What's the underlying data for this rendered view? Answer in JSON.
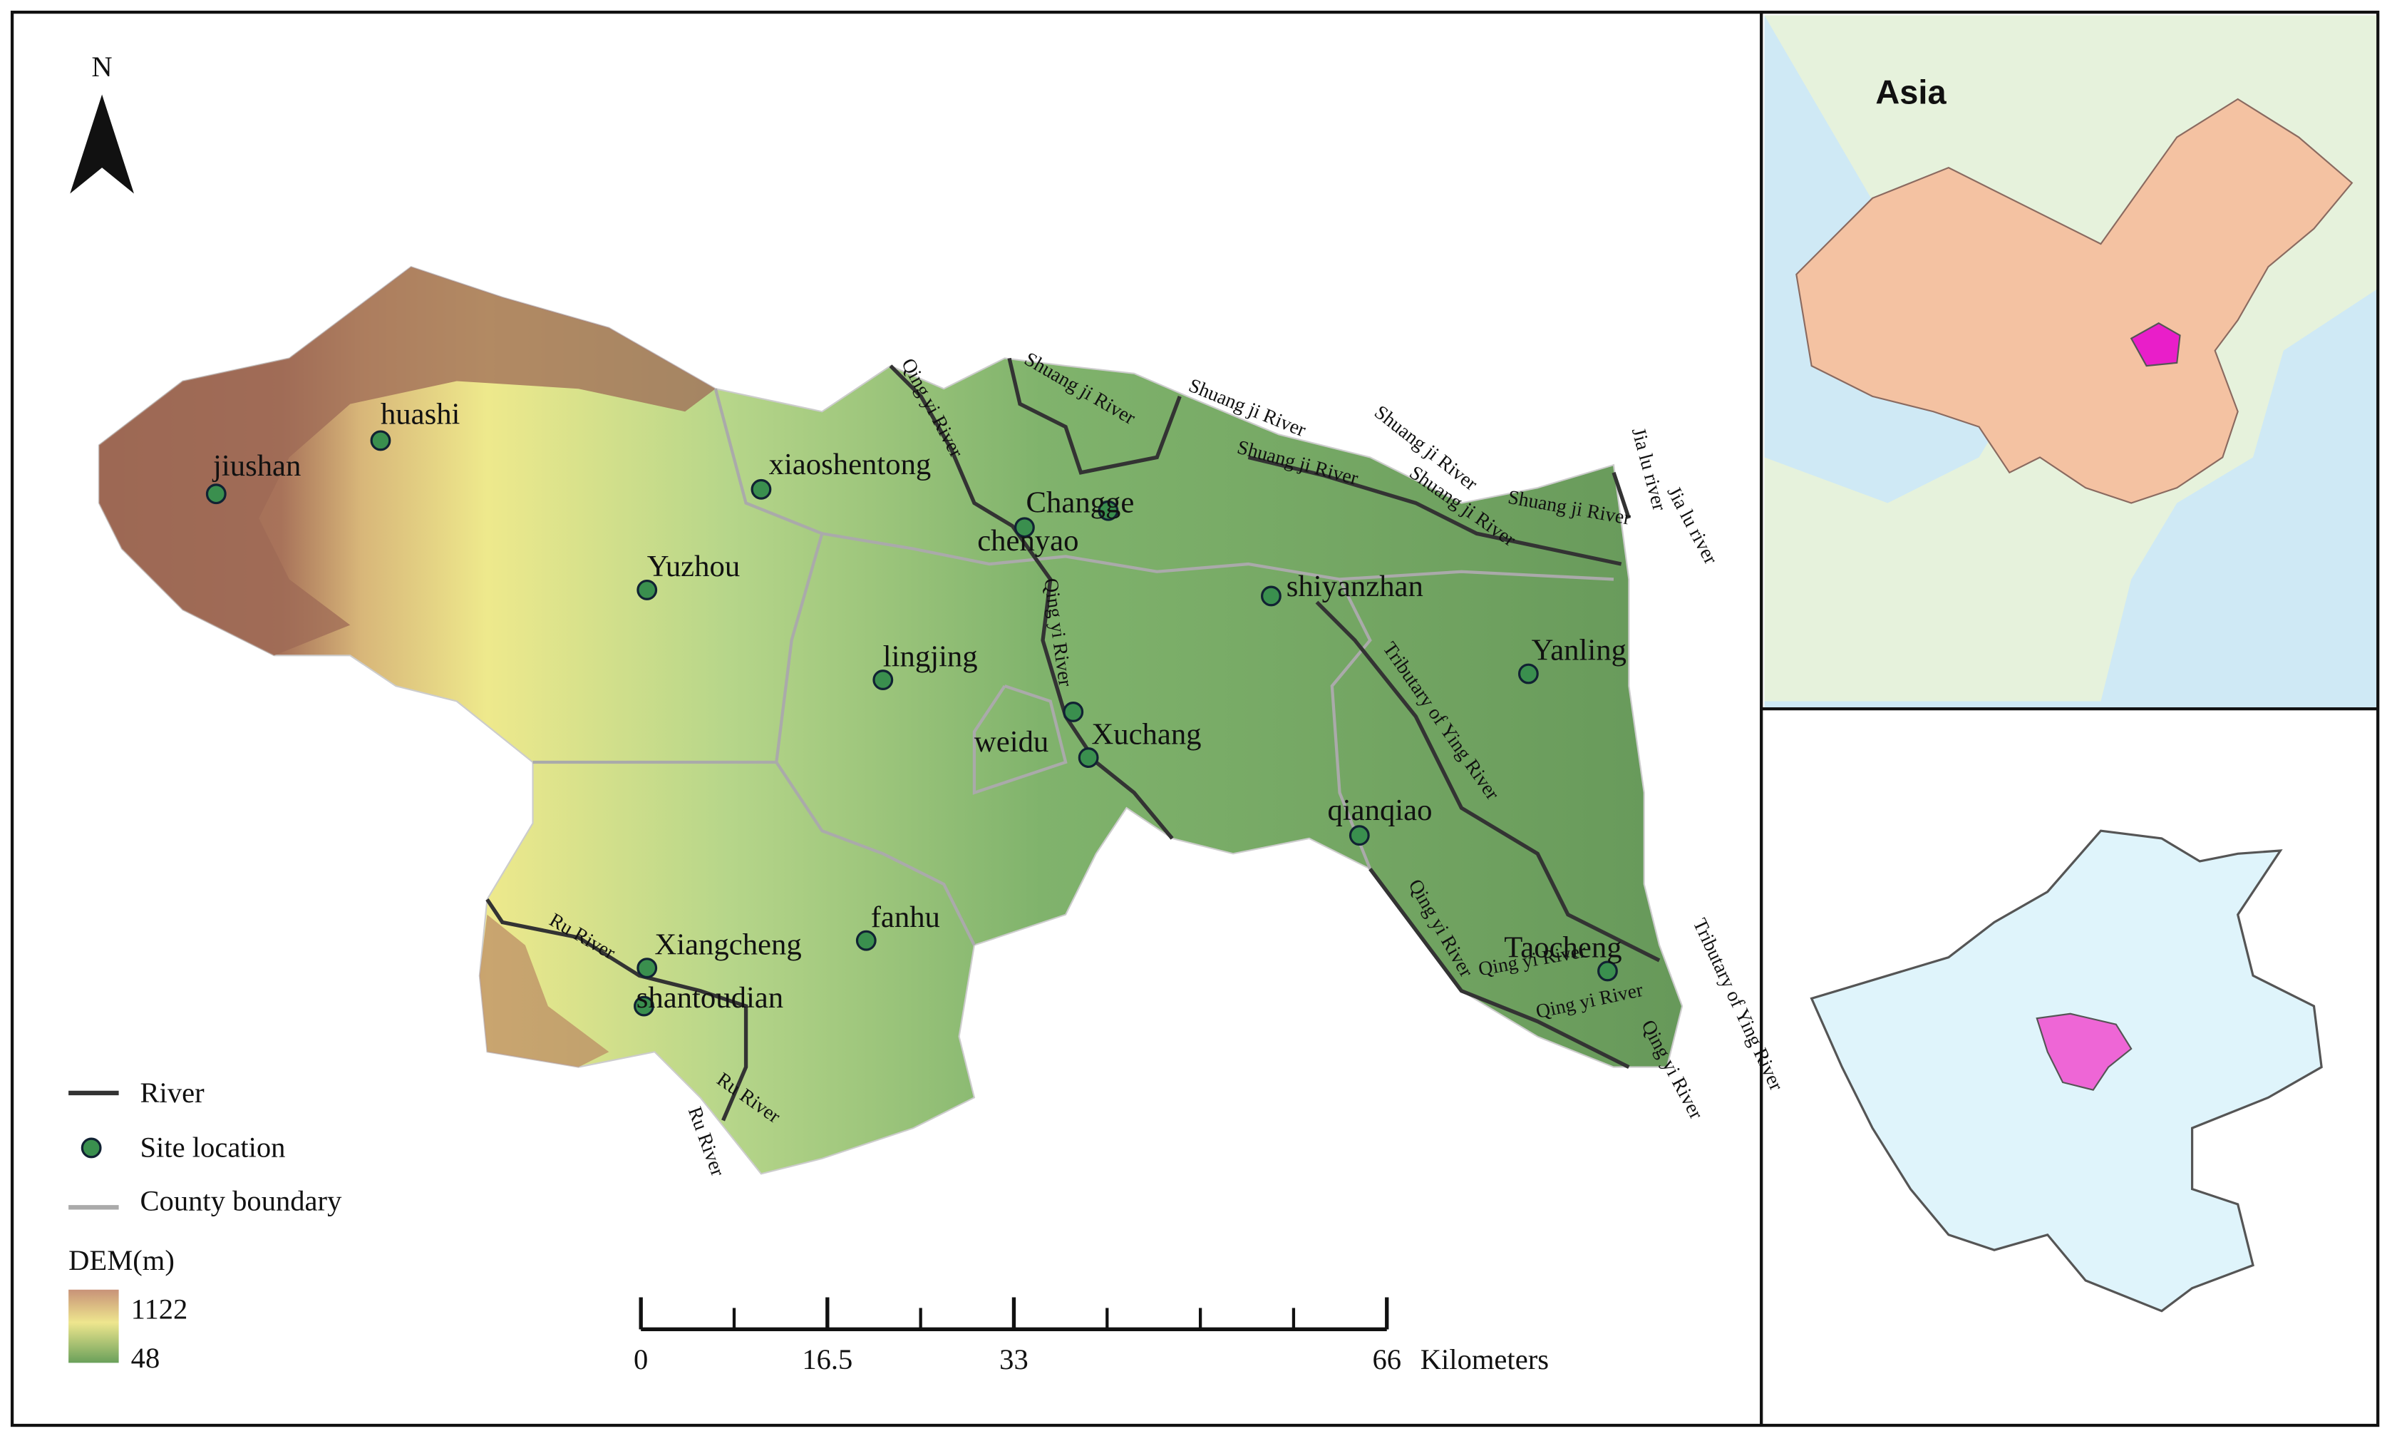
{
  "main_map": {
    "north_label": "N",
    "sites": [
      "jiushan",
      "huashi",
      "xiaoshentong",
      "Changge",
      "chenyao",
      "Yuzhou",
      "shiyanzhan",
      "lingjing",
      "Yanling",
      "weidu",
      "Xuchang",
      "qianqiao",
      "fanhu",
      "Xiangcheng",
      "shantoudian",
      "Taocheng"
    ],
    "river_labels": [
      "Qing yi River",
      "Shuang ji River",
      "Shuang ji River",
      "Shuang ji River",
      "Shuang ji River",
      "Shuang ji River",
      "Shuang ji River",
      "Jia lu river",
      "Jia lu river",
      "Qing yi River",
      "Tributary of Ying River",
      "Qing yi River",
      "Qing yi River",
      "Qing yi River",
      "Qing yi River",
      "Tributary of Ying River",
      "Ru River",
      "Ru River",
      "Ru River"
    ],
    "legend": {
      "river": "River",
      "site": "Site location",
      "boundary": "County boundary",
      "dem_title": "DEM(m)",
      "dem_max": 1122,
      "dem_min": 48
    },
    "scale_bar": {
      "ticks": [
        0,
        16.5,
        33,
        66
      ],
      "unit": "Kilometers"
    }
  },
  "inset_asia": {
    "label": "Asia"
  }
}
